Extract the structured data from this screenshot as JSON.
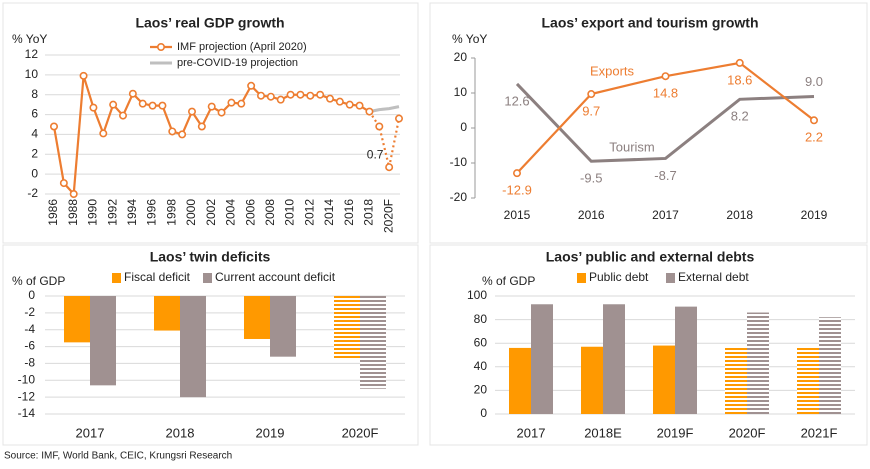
{
  "chart_data": [
    {
      "type": "line",
      "title": "Laos’ real GDP growth",
      "y_label": "% YoY",
      "categories": [
        "1986",
        null,
        "1988",
        null,
        "1990",
        null,
        "1992",
        null,
        "1994",
        null,
        "1996",
        null,
        "1998",
        null,
        "2000",
        null,
        "2002",
        null,
        "2004",
        null,
        "2006",
        null,
        "2008",
        null,
        "2010",
        null,
        "2012",
        null,
        "2014",
        null,
        "2016",
        null,
        "2018",
        null,
        "2020F",
        null
      ],
      "series": [
        {
          "name": "IMF projection (April 2020)",
          "color": "#ed7d31",
          "markers": true,
          "dashed_from_index": 32,
          "values": [
            4.8,
            -0.9,
            -2.0,
            9.9,
            6.7,
            4.1,
            7.0,
            5.9,
            8.1,
            7.1,
            6.9,
            6.9,
            4.3,
            4.0,
            6.3,
            4.8,
            6.8,
            6.2,
            7.2,
            7.1,
            8.9,
            7.9,
            7.8,
            7.5,
            8.0,
            8.0,
            7.9,
            8.0,
            7.6,
            7.3,
            7.0,
            6.9,
            6.3,
            4.8,
            0.7,
            5.6
          ],
          "labeled_index": 34
        },
        {
          "name": "pre-COVID-19 projection",
          "color": "#bfbfbf",
          "markers": false,
          "values": [
            null,
            null,
            null,
            null,
            null,
            null,
            null,
            null,
            null,
            null,
            null,
            null,
            null,
            null,
            null,
            null,
            null,
            null,
            null,
            null,
            null,
            null,
            null,
            null,
            null,
            null,
            null,
            null,
            null,
            null,
            null,
            null,
            6.3,
            6.5,
            6.6,
            6.8
          ]
        }
      ],
      "ylim": [
        -2,
        12
      ],
      "yticks": [
        -2,
        0,
        2,
        4,
        6,
        8,
        10,
        12
      ],
      "grid": true,
      "legend": "top"
    },
    {
      "type": "line",
      "title": "Laos’ export and tourism growth",
      "y_label": "% YoY",
      "categories": [
        "2015",
        "2016",
        "2017",
        "2018",
        "2019"
      ],
      "series": [
        {
          "name": "Exports",
          "color": "#ed7d31",
          "markers": true,
          "values": [
            -12.9,
            9.7,
            14.8,
            18.6,
            2.2
          ],
          "value_labels": [
            "-12.9",
            "9.7",
            "14.8",
            "18.6",
            "2.2"
          ]
        },
        {
          "name": "Tourism",
          "color": "#8c8080",
          "markers": false,
          "values": [
            12.6,
            -9.5,
            -8.7,
            8.2,
            9.0
          ],
          "value_labels": [
            "12.6",
            "-9.5",
            "-8.7",
            "8.2",
            "9.0"
          ]
        }
      ],
      "ylim": [
        -20,
        20
      ],
      "yticks": [
        -20,
        -10,
        0,
        10,
        20
      ],
      "grid": false,
      "legend": "inline"
    },
    {
      "type": "bar",
      "title": "Laos’ twin deficits",
      "y_label": "% of GDP",
      "categories": [
        "2017",
        "2018",
        "2019",
        "2020F"
      ],
      "series": [
        {
          "name": "Fiscal deficit",
          "color": "#ff9900",
          "values": [
            -5.5,
            -4.1,
            -5.1,
            -7.5
          ]
        },
        {
          "name": "Current account deficit",
          "color": "#a09191",
          "values": [
            -10.6,
            -12.0,
            -7.2,
            -11.0
          ]
        }
      ],
      "ylim": [
        -14,
        0
      ],
      "yticks": [
        0,
        -2,
        -4,
        -6,
        -8,
        -10,
        -12,
        -14
      ],
      "grid": true,
      "hatched_from_index": 3,
      "legend": "top"
    },
    {
      "type": "bar",
      "title": "Laos’ public and external debts",
      "y_label": "% of GDP",
      "categories": [
        "2017",
        "2018E",
        "2019F",
        "2020F",
        "2021F"
      ],
      "series": [
        {
          "name": "Public debt",
          "color": "#ff9900",
          "values": [
            56,
            57,
            58,
            56,
            56
          ]
        },
        {
          "name": "External debt",
          "color": "#a09191",
          "values": [
            93,
            93,
            91,
            86,
            82
          ]
        }
      ],
      "ylim": [
        0,
        100
      ],
      "yticks": [
        0,
        20,
        40,
        60,
        80,
        100
      ],
      "grid": true,
      "hatched_from_index": 3,
      "legend": "top"
    }
  ],
  "source": "Source: IMF, World Bank, CEIC, Krungsri Research"
}
